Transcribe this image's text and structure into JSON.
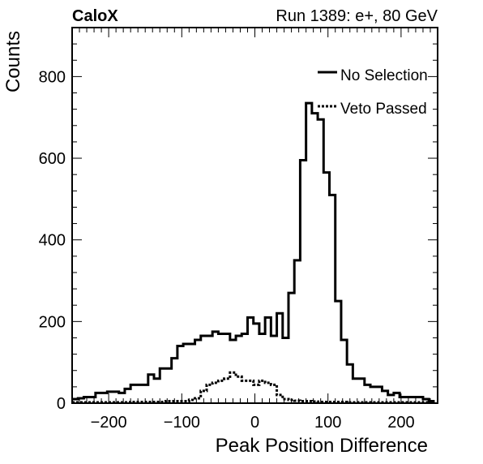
{
  "chart_data": {
    "type": "histogram",
    "title_left": "CaloX",
    "title_right": "Run 1389: e+, 80 GeV",
    "xlabel": "Peak Position Difference",
    "ylabel": "Counts",
    "xlim": [
      -250,
      250
    ],
    "ylim": [
      0,
      920
    ],
    "x_ticks": [
      -200,
      -100,
      0,
      100,
      200
    ],
    "x_tick_labels": [
      "−200",
      "−100",
      "0",
      "100",
      "200"
    ],
    "y_ticks": [
      0,
      200,
      400,
      600,
      800
    ],
    "y_tick_labels": [
      "0",
      "200",
      "400",
      "600",
      "800"
    ],
    "grid": false,
    "legend_position": "top-right",
    "bin_edges_start": -250,
    "bin_width": 8,
    "series": [
      {
        "name": "No Selection",
        "style": "solid",
        "color": "#000000",
        "values": [
          10,
          12,
          15,
          15,
          25,
          25,
          28,
          28,
          25,
          35,
          45,
          45,
          45,
          70,
          60,
          85,
          85,
          110,
          140,
          145,
          145,
          155,
          165,
          165,
          175,
          170,
          170,
          155,
          165,
          170,
          210,
          195,
          170,
          210,
          165,
          220,
          160,
          270,
          350,
          595,
          735,
          710,
          695,
          565,
          510,
          250,
          155,
          95,
          60,
          60,
          45,
          40,
          40,
          30,
          20,
          25,
          15,
          15,
          15,
          15,
          10,
          5
        ]
      },
      {
        "name": "Veto Passed",
        "style": "dotted",
        "color": "#000000",
        "values": [
          2,
          2,
          2,
          2,
          2,
          2,
          2,
          2,
          2,
          2,
          3,
          3,
          3,
          3,
          3,
          3,
          5,
          5,
          5,
          5,
          8,
          12,
          30,
          45,
          50,
          55,
          60,
          75,
          65,
          55,
          55,
          45,
          55,
          50,
          45,
          20,
          10,
          8,
          6,
          5,
          5,
          4,
          3,
          3,
          3,
          3,
          3,
          2,
          2,
          2,
          2,
          2,
          2,
          2,
          2,
          2,
          2,
          2,
          2,
          2,
          2,
          2
        ]
      }
    ]
  }
}
